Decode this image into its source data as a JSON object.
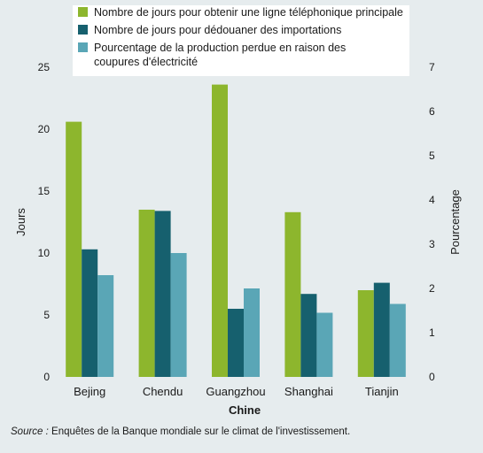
{
  "chart_data": {
    "type": "bar",
    "title": "",
    "xlabel": "Chine",
    "ylabel": "Jours",
    "y2label": "Pourcentage",
    "categories": [
      "Bejing",
      "Chendu",
      "Guangzhou",
      "Shanghai",
      "Tianjin"
    ],
    "ylim": [
      0,
      25
    ],
    "yticks": [
      0,
      5,
      10,
      15,
      20,
      25
    ],
    "y2lim": [
      0,
      7
    ],
    "y2ticks": [
      0,
      1,
      2,
      3,
      4,
      5,
      6,
      7
    ],
    "grid": false,
    "legend_position": "top",
    "series": [
      {
        "name": "Nombre de jours pour obtenir une ligne téléphonique principale",
        "axis": "left",
        "color": "#8db62d",
        "values": [
          20.6,
          13.5,
          23.6,
          13.3,
          7.0
        ]
      },
      {
        "name": "Nombre de jours pour dédouaner des importations",
        "axis": "left",
        "color": "#16606e",
        "values": [
          10.3,
          13.4,
          5.5,
          6.7,
          7.6
        ]
      },
      {
        "name_lines": [
          "Pourcentage de la production perdue en raison des",
          "coupures d'électricité"
        ],
        "axis": "right",
        "color": "#5aa6b6",
        "values": [
          2.3,
          2.8,
          2.0,
          1.45,
          1.65
        ]
      }
    ]
  },
  "source": {
    "label": "Source :",
    "text": " Enquêtes de la Banque mondiale sur le climat de l'investissement."
  }
}
